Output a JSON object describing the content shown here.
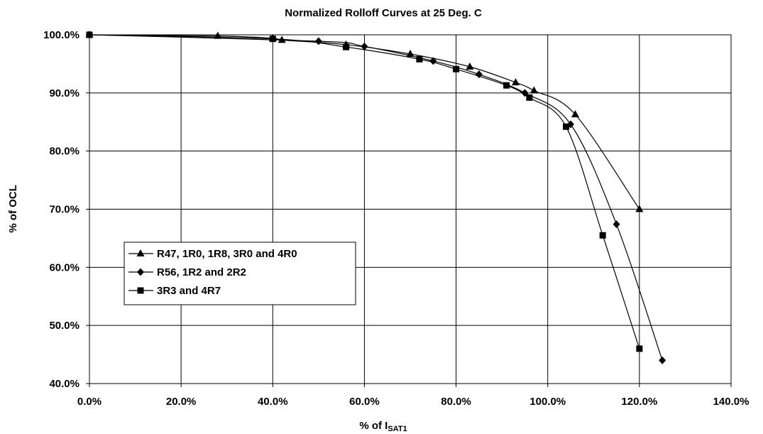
{
  "chart_data": {
    "type": "line",
    "title": "Normalized Rolloff Curves at 25 Deg. C",
    "xlabel": {
      "main": "% of I",
      "subscript": "SAT1"
    },
    "ylabel": "% of OCL",
    "xlim": [
      0,
      140
    ],
    "ylim": [
      40,
      100
    ],
    "x_ticks": [
      "0.0%",
      "20.0%",
      "40.0%",
      "60.0%",
      "80.0%",
      "100.0%",
      "120.0%",
      "140.0%"
    ],
    "y_ticks": [
      "40.0%",
      "50.0%",
      "60.0%",
      "70.0%",
      "80.0%",
      "90.0%",
      "100.0%"
    ],
    "grid": true,
    "legend_position": "left-center",
    "series": [
      {
        "name": "R47, 1R0, 1R8, 3R0 and 4R0",
        "marker": "triangle",
        "points": [
          [
            0,
            100.0
          ],
          [
            28,
            99.8
          ],
          [
            40,
            99.4
          ],
          [
            42,
            99.1
          ],
          [
            56,
            98.3
          ],
          [
            70,
            96.7
          ],
          [
            83,
            94.5
          ],
          [
            93,
            91.8
          ],
          [
            97,
            90.4
          ],
          [
            106,
            86.3
          ],
          [
            120,
            70.0
          ]
        ]
      },
      {
        "name": "R56, 1R2 and 2R2",
        "marker": "diamond",
        "points": [
          [
            0,
            100.0
          ],
          [
            50,
            98.9
          ],
          [
            60,
            98.0
          ],
          [
            75,
            95.5
          ],
          [
            85,
            93.2
          ],
          [
            95,
            90.0
          ],
          [
            105,
            84.6
          ],
          [
            115,
            67.4
          ],
          [
            125,
            44.0
          ]
        ]
      },
      {
        "name": "3R3 and 4R7",
        "marker": "square",
        "points": [
          [
            0,
            100.0
          ],
          [
            40,
            99.3
          ],
          [
            56,
            97.9
          ],
          [
            72,
            95.8
          ],
          [
            80,
            94.1
          ],
          [
            91,
            91.3
          ],
          [
            96,
            89.2
          ],
          [
            104,
            84.2
          ],
          [
            112,
            65.5
          ],
          [
            120,
            46.0
          ]
        ]
      }
    ]
  }
}
